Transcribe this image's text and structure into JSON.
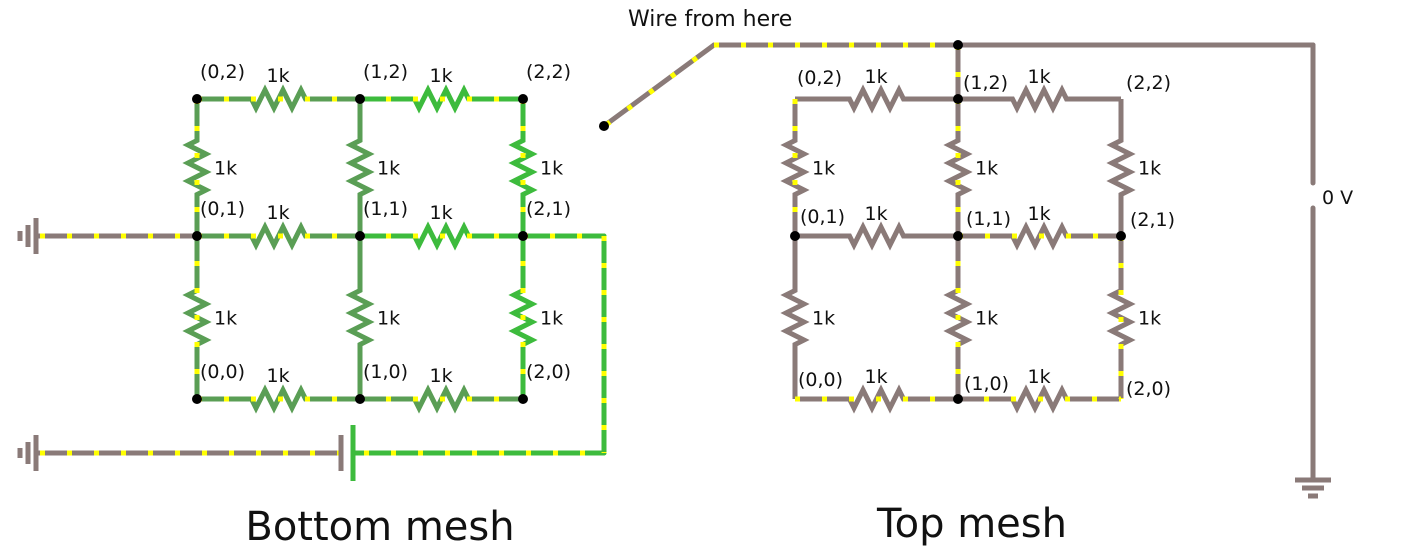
{
  "colors": {
    "wire_gray": "#8a7a78",
    "wire_green_light": "#3dbb3d",
    "wire_green_dark": "#5a9e55",
    "current_dots": "#ffff00",
    "node": "#000000",
    "text": "#111111"
  },
  "annotations": {
    "wire_from_here": "Wire from here",
    "zero_volt": "0 V"
  },
  "bottom_mesh": {
    "title": "Bottom mesh",
    "nodes": [
      "(0,0)",
      "(1,0)",
      "(2,0)",
      "(0,1)",
      "(1,1)",
      "(2,1)",
      "(0,2)",
      "(1,2)",
      "(2,2)"
    ],
    "resistor_value": "1k"
  },
  "top_mesh": {
    "title": "Top mesh",
    "nodes": [
      "(0,0)",
      "(1,0)",
      "(2,0)",
      "(0,1)",
      "(1,1)",
      "(2,1)",
      "(0,2)",
      "(1,2)",
      "(2,2)"
    ],
    "resistor_value": "1k"
  },
  "icons": [
    "ground-icon",
    "battery-icon",
    "resistor-icon",
    "node-dot-icon"
  ]
}
